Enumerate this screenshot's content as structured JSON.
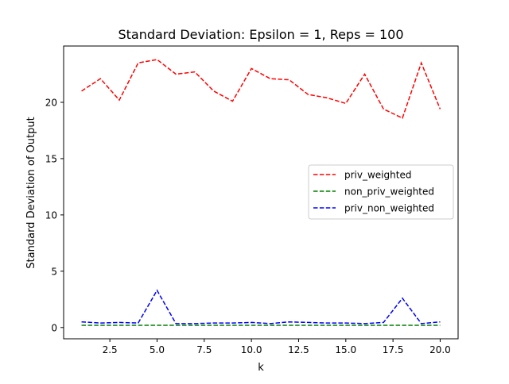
{
  "chart_data": {
    "type": "line",
    "title": "Standard Deviation: Epsilon = 1, Reps = 100",
    "xlabel": "k",
    "ylabel": "Standard Deviation of Output",
    "xlim": [
      0.05,
      20.95
    ],
    "ylim": [
      -1.0,
      25.0
    ],
    "x_ticks": [
      2.5,
      5.0,
      7.5,
      10.0,
      12.5,
      15.0,
      17.5,
      20.0
    ],
    "x_tick_labels": [
      "2.5",
      "5.0",
      "7.5",
      "10.0",
      "12.5",
      "15.0",
      "17.5",
      "20.0"
    ],
    "y_ticks": [
      0,
      5,
      10,
      15,
      20
    ],
    "y_tick_labels": [
      "0",
      "5",
      "10",
      "15",
      "20"
    ],
    "grid": false,
    "legend_position": "center-right",
    "x": [
      1,
      2,
      3,
      4,
      5,
      6,
      7,
      8,
      9,
      10,
      11,
      12,
      13,
      14,
      15,
      16,
      17,
      18,
      19,
      20
    ],
    "series": [
      {
        "name": "priv_weighted",
        "color": "#ff0000",
        "line_style": "dashed",
        "values": [
          21.0,
          22.1,
          20.2,
          23.5,
          23.8,
          22.5,
          22.7,
          21.0,
          20.1,
          23.0,
          22.1,
          22.0,
          20.7,
          20.4,
          19.9,
          22.5,
          19.4,
          18.6,
          23.5,
          19.4
        ]
      },
      {
        "name": "non_priv_weighted",
        "color": "#008000",
        "line_style": "dashed",
        "values": [
          0.2,
          0.2,
          0.2,
          0.2,
          0.2,
          0.2,
          0.2,
          0.2,
          0.2,
          0.2,
          0.2,
          0.2,
          0.2,
          0.2,
          0.2,
          0.2,
          0.2,
          0.2,
          0.2,
          0.2
        ]
      },
      {
        "name": "priv_non_weighted",
        "color": "#0000ff",
        "line_style": "dashed",
        "values": [
          0.5,
          0.4,
          0.45,
          0.4,
          3.3,
          0.35,
          0.35,
          0.4,
          0.4,
          0.45,
          0.35,
          0.5,
          0.45,
          0.4,
          0.4,
          0.35,
          0.45,
          2.6,
          0.35,
          0.5
        ]
      }
    ]
  }
}
